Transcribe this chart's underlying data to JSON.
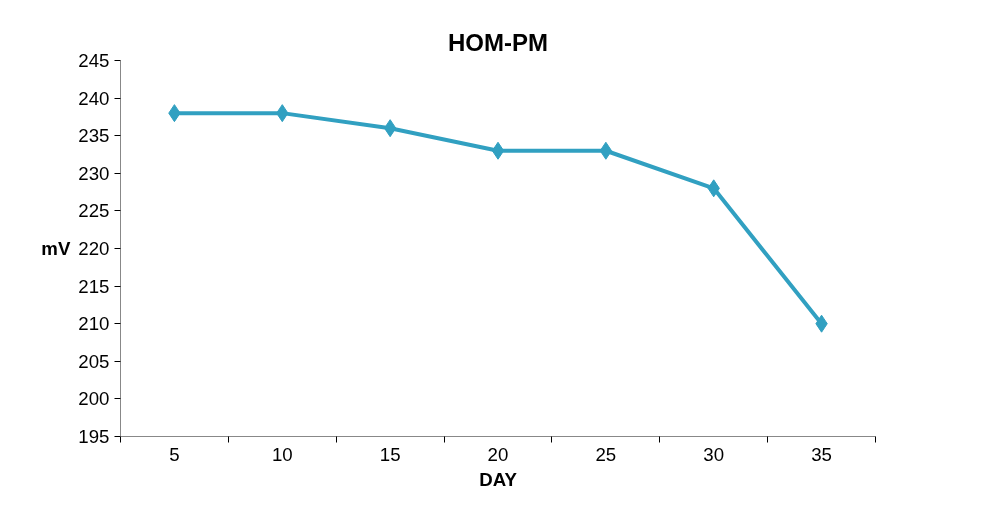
{
  "chart_data": {
    "type": "line",
    "title": "HOM-PM",
    "xlabel": "DAY",
    "ylabel": "mV",
    "categories": [
      "5",
      "10",
      "15",
      "20",
      "25",
      "30",
      "35"
    ],
    "series": [
      {
        "color": "#31a0c1",
        "values": [
          238,
          238,
          236,
          233,
          233,
          228,
          210
        ]
      }
    ],
    "ylim": [
      195,
      245
    ],
    "yticks": [
      195,
      200,
      205,
      210,
      215,
      220,
      225,
      230,
      235,
      240,
      245
    ],
    "grid": false,
    "marker": "diamond",
    "line_style": "solid"
  }
}
